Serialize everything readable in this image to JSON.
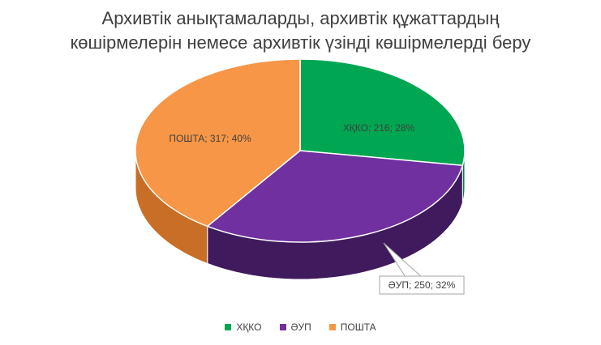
{
  "chart_data": {
    "type": "pie",
    "title_lines": [
      "Архивтік анықтамаларды, архивтік құжаттардың",
      "көшірмелерін немесе архивтік үзінді көшірмелерді беру"
    ],
    "slices": [
      {
        "name": "ХҚКО",
        "value": 216,
        "percent": "28%",
        "label": "ХҚКО; 216; 28%",
        "color": "#00A651",
        "side_color": "#008040"
      },
      {
        "name": "ӘУП",
        "value": 250,
        "percent": "32%",
        "label": "ӘУП; 250; 32%",
        "color": "#7030A0",
        "side_color": "#3F1A5C"
      },
      {
        "name": "ПОШТА",
        "value": 317,
        "percent": "40%",
        "label": "ПОШТА; 317; 40%",
        "color": "#F79646",
        "side_color": "#C96E26"
      }
    ],
    "legend": [
      "ХҚКО",
      "ӘУП",
      "ПОШТА"
    ],
    "legend_placement": "bottom",
    "style": "3d"
  }
}
